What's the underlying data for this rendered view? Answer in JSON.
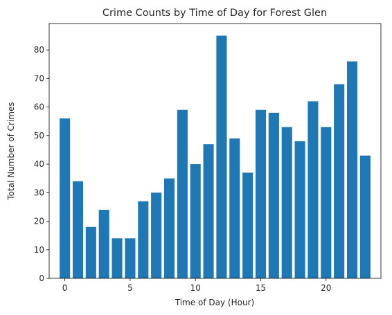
{
  "chart_data": {
    "type": "bar",
    "title": "Crime Counts by Time of Day for Forest Glen",
    "xlabel": "Time of Day (Hour)",
    "ylabel": "Total Number of Crimes",
    "x": [
      0,
      1,
      2,
      3,
      4,
      5,
      6,
      7,
      8,
      9,
      10,
      11,
      12,
      13,
      14,
      15,
      16,
      17,
      18,
      19,
      20,
      21,
      22,
      23
    ],
    "values": [
      56,
      34,
      18,
      24,
      14,
      14,
      27,
      30,
      35,
      59,
      40,
      47,
      85,
      49,
      37,
      59,
      58,
      53,
      48,
      62,
      53,
      68,
      76,
      43
    ],
    "xlim": [
      -1.2,
      24.2
    ],
    "ylim": [
      0,
      89.25
    ],
    "xticks": [
      0,
      5,
      10,
      15,
      20
    ],
    "yticks": [
      0,
      10,
      20,
      30,
      40,
      50,
      60,
      70,
      80
    ],
    "bar_width": 0.8,
    "bar_color": "#1f77b4",
    "grid": false,
    "legend": "none"
  }
}
